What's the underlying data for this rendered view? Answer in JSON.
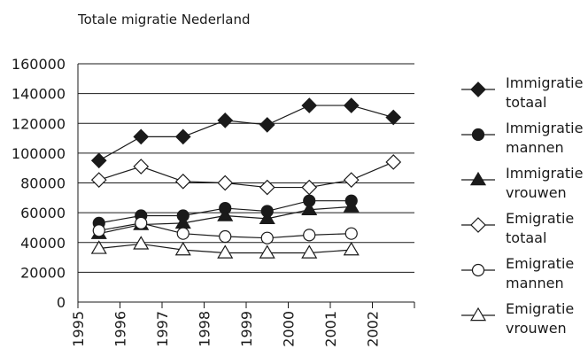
{
  "chart_data": {
    "type": "line",
    "title": "Totale migratie Nederland",
    "xlabel": "",
    "ylabel": "",
    "xlim": [
      1995,
      2003
    ],
    "ylim": [
      0,
      160000
    ],
    "x_ticks": [
      "1995",
      "1996",
      "1997",
      "1998",
      "1999",
      "2000",
      "2001",
      "2002"
    ],
    "y_ticks": [
      "160000",
      "140000",
      "120000",
      "100000",
      "80000",
      "60000",
      "40000",
      "20000",
      "0"
    ],
    "grid": true,
    "legend_position": "right",
    "series": [
      {
        "name": [
          "Immigratie",
          "totaal"
        ],
        "marker": "diamond-filled",
        "x": [
          1995.5,
          1996.5,
          1997.5,
          1998.5,
          1999.5,
          2000.5,
          2001.5,
          2002.5
        ],
        "values": [
          95000,
          111000,
          111000,
          122000,
          119000,
          132000,
          132000,
          124000
        ]
      },
      {
        "name": [
          "Immigratie",
          "mannen"
        ],
        "marker": "circle-filled",
        "x": [
          1995.5,
          1996.5,
          1997.5,
          1998.5,
          1999.5,
          2000.5,
          2001.5
        ],
        "values": [
          53000,
          58000,
          58000,
          63000,
          61000,
          68000,
          68000
        ]
      },
      {
        "name": [
          "Immigratie",
          "vrouwen"
        ],
        "marker": "triangle-filled",
        "x": [
          1995.5,
          1996.5,
          1997.5,
          1998.5,
          1999.5,
          2000.5,
          2001.5
        ],
        "values": [
          46000,
          52000,
          53000,
          58000,
          56000,
          62000,
          64000
        ]
      },
      {
        "name": [
          "Emigratie",
          "totaal"
        ],
        "marker": "diamond-open",
        "x": [
          1995.5,
          1996.5,
          1997.5,
          1998.5,
          1999.5,
          2000.5,
          2001.5,
          2002.5
        ],
        "values": [
          82000,
          91000,
          81000,
          80000,
          77000,
          77000,
          82000,
          94000
        ]
      },
      {
        "name": [
          "Emigratie",
          "mannen"
        ],
        "marker": "circle-open",
        "x": [
          1995.5,
          1996.5,
          1997.5,
          1998.5,
          1999.5,
          2000.5,
          2001.5
        ],
        "values": [
          48000,
          53000,
          46000,
          44000,
          43000,
          45000,
          46000
        ]
      },
      {
        "name": [
          "Emigratie",
          "vrouwen"
        ],
        "marker": "triangle-open",
        "x": [
          1995.5,
          1996.5,
          1997.5,
          1998.5,
          1999.5,
          2000.5,
          2001.5
        ],
        "values": [
          36000,
          39000,
          35000,
          33000,
          33000,
          33000,
          35000
        ]
      }
    ],
    "colors": {
      "line": "#1a1a1a",
      "grid": "#1a1a1a",
      "background": "#ffffff"
    }
  }
}
